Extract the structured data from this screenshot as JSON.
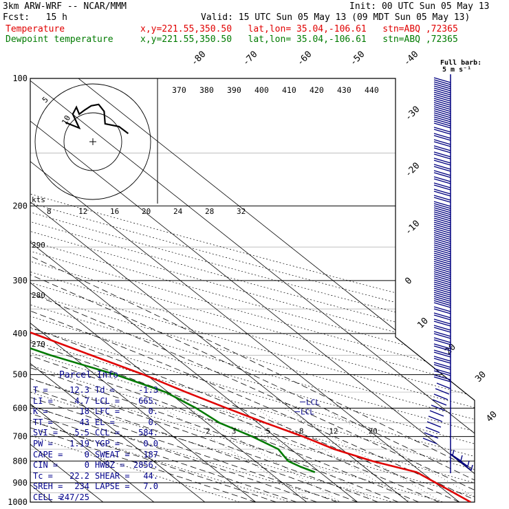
{
  "header": {
    "model": "3km ARW-WRF -- NCAR/MMM",
    "init": "Init: 00 UTC Sun 05 May 13",
    "fcst": "Fcst:   15 h",
    "valid": "Valid: 15 UTC Sun 05 May 13 (09 MDT Sun 05 May 13)",
    "temp_label": "Temperature",
    "dew_label": "Dewpoint temperature",
    "temp_info": "x,y=221.55,350.50   lat,lon= 35.04,-106.61   stn=ABQ ,72365",
    "dew_info": "x,y=221.55,350.50   lat,lon= 35.04,-106.61   stn=ABQ ,72365"
  },
  "colors": {
    "temperature": "#e00000",
    "dewpoint": "#007a00",
    "hodograph": "#000000",
    "barbs": "#000080",
    "parcel_text": "#00008b"
  },
  "chart_data": {
    "type": "line",
    "subtype": "skew-T log-p sounding",
    "pressure_levels": [
      "100",
      "200",
      "300",
      "400",
      "500",
      "600",
      "700",
      "800",
      "900",
      "1000"
    ],
    "isotherm_labels": [
      "-80",
      "-70",
      "-60",
      "-50",
      "-40",
      "-30",
      "-20",
      "-10",
      "0",
      "10",
      "20",
      "30",
      "40"
    ],
    "theta_labels": [
      "370",
      "380",
      "390",
      "400",
      "410",
      "420",
      "430",
      "440"
    ],
    "thetae_labels": [
      "290",
      "280",
      "270"
    ],
    "mixing_ratio_labels": [
      "2",
      "3",
      "5",
      "8",
      "12",
      "20"
    ],
    "hodo_speed_labels": [
      "8",
      "12",
      "16",
      "20",
      "24",
      "28",
      "32"
    ],
    "hodo_ring_labels": [
      "5",
      "10"
    ],
    "hodo_unit": "kts",
    "barb_label": "Full barb:",
    "barb_unit": "5 m s⁻¹",
    "lcl_label": "LCL",
    "series": [
      {
        "name": "Temperature",
        "p": [
          1000,
          850,
          800,
          750,
          700,
          650,
          600,
          550,
          500,
          450,
          400,
          350,
          300,
          250,
          200,
          170,
          150,
          130,
          110,
          100
        ],
        "t": [
          22.2,
          19.0,
          13.0,
          8.5,
          5.5,
          1.5,
          -2.5,
          -6.5,
          -10.5,
          -16.0,
          -22.0,
          -29.5,
          -38.0,
          -48.0,
          -58.0,
          -61.0,
          -61.5,
          -61.0,
          -60.0,
          -58.0
        ]
      },
      {
        "name": "Dewpoint temperature",
        "p": [
          850,
          825,
          800,
          750,
          700,
          650,
          600,
          550,
          500,
          450,
          400,
          350,
          300,
          250,
          200,
          170,
          150,
          130,
          110,
          100
        ],
        "t": [
          -1.0,
          -2.5,
          -3.5,
          -2.5,
          -4.5,
          -7.5,
          -8.5,
          -10.5,
          -16.0,
          -24.0,
          -31.0,
          -39.0,
          -48.0,
          -62.0,
          -71.0,
          -76.0,
          -80.0,
          -82.0,
          -83.0,
          -84.0
        ]
      }
    ],
    "hodograph_kts": [
      [
        0,
        0
      ],
      [
        1.5,
        -0.4
      ],
      [
        0.8,
        0.6
      ],
      [
        1.2,
        1.1
      ],
      [
        1.5,
        0.6
      ],
      [
        2.1,
        0.9
      ],
      [
        2.8,
        1.2
      ],
      [
        3.6,
        1.3
      ],
      [
        4.2,
        0.8
      ],
      [
        4.3,
        -0.1
      ],
      [
        5.8,
        -0.3
      ],
      [
        6.8,
        -0.8
      ]
    ]
  },
  "parcel_info": {
    "title": "Parcel  Info",
    "rows": [
      [
        "T",
        "12.3",
        "Td",
        "-1.3"
      ],
      [
        "LI",
        "4.7",
        "LCL",
        "665."
      ],
      [
        "K",
        "18",
        "LFC",
        "0."
      ],
      [
        "TT",
        "43",
        "EL",
        "0."
      ],
      [
        "SVI",
        "5.5",
        "CCL",
        "584."
      ],
      [
        "PW",
        "1.19",
        "YGP",
        "0.0"
      ],
      [
        "CAPE",
        "0",
        "SWEAT",
        "187"
      ],
      [
        "CIN",
        "0",
        "HWBZ",
        "2856."
      ],
      [
        "Tc",
        "22.2",
        "SHEAR",
        "44."
      ],
      [
        "SREH",
        "234",
        "LAPSE",
        "7.0"
      ],
      [
        "CELL",
        "247/25",
        "",
        ""
      ]
    ]
  }
}
